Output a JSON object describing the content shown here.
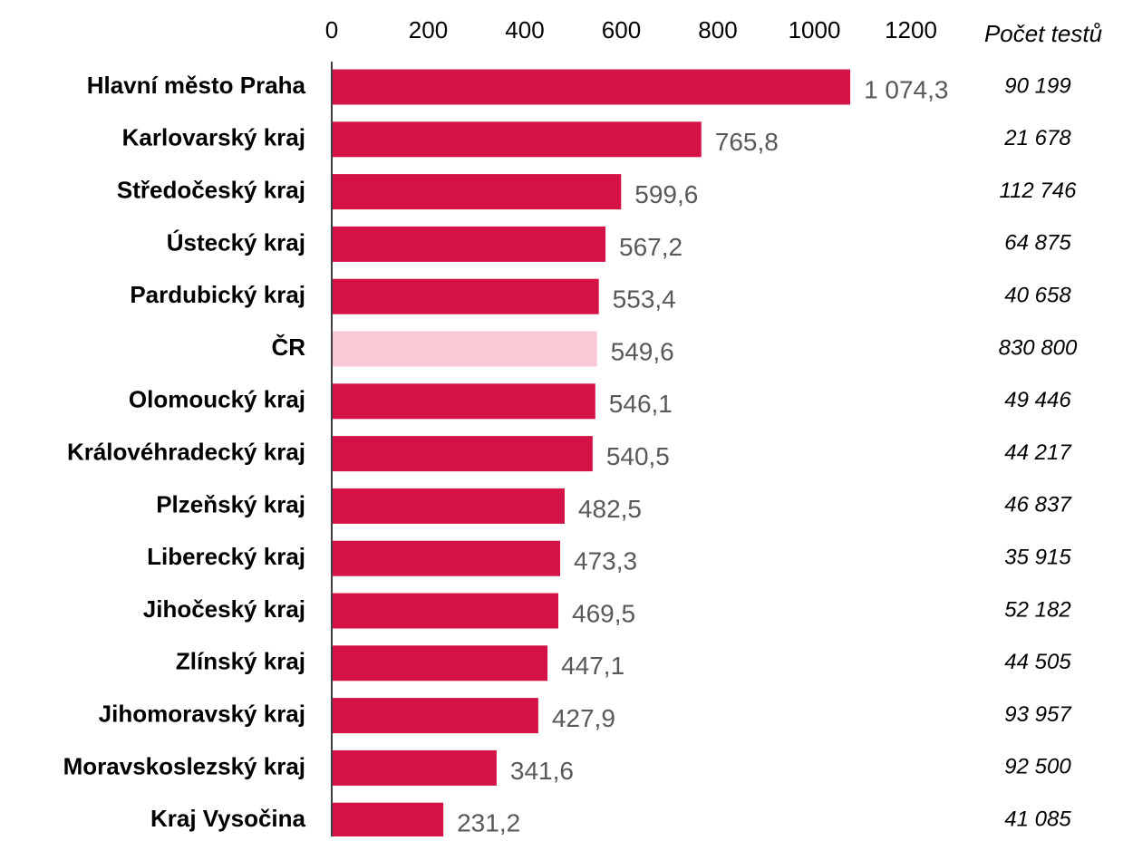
{
  "chart_data": {
    "type": "bar",
    "orientation": "horizontal",
    "title": "",
    "xlabel": "",
    "ylabel": "",
    "xlim": [
      0,
      1200
    ],
    "x_ticks": [
      "0",
      "200",
      "400",
      "600",
      "800",
      "1000",
      "1200"
    ],
    "grid": false,
    "legend": "none",
    "categories": [
      "Hlavní město Praha",
      "Karlovarský kraj",
      "Středočeský kraj",
      "Ústecký kraj",
      "Pardubický kraj",
      "ČR",
      "Olomoucký kraj",
      "Královéhradecký kraj",
      "Plzeňský kraj",
      "Liberecký kraj",
      "Jihočeský kraj",
      "Zlínský kraj",
      "Jihomoravský kraj",
      "Moravskoslezský kraj",
      "Kraj Vysočina"
    ],
    "values": [
      1074.3,
      765.8,
      599.6,
      567.2,
      553.4,
      549.6,
      546.1,
      540.5,
      482.5,
      473.3,
      469.5,
      447.1,
      427.9,
      341.6,
      231.2
    ],
    "value_labels": [
      "1 074,3",
      "765,8",
      "599,6",
      "567,2",
      "553,4",
      "549,6",
      "546,1",
      "540,5",
      "482,5",
      "473,3",
      "469,5",
      "447,1",
      "427,9",
      "341,6",
      "231,2"
    ],
    "highlight_category": "ČR",
    "secondary_column": {
      "header": "Počet testů",
      "values": [
        "90 199",
        "21 678",
        "112 746",
        "64 875",
        "40 658",
        "830 800",
        "49 446",
        "44 217",
        "46 837",
        "35 915",
        "52 182",
        "44 505",
        "93 957",
        "92 500",
        "41 085"
      ]
    },
    "colors": {
      "bar": "#d51245",
      "highlight": "#f9c9d5",
      "value_label": "#595959",
      "axis": "#000000",
      "text": "#000000"
    }
  }
}
